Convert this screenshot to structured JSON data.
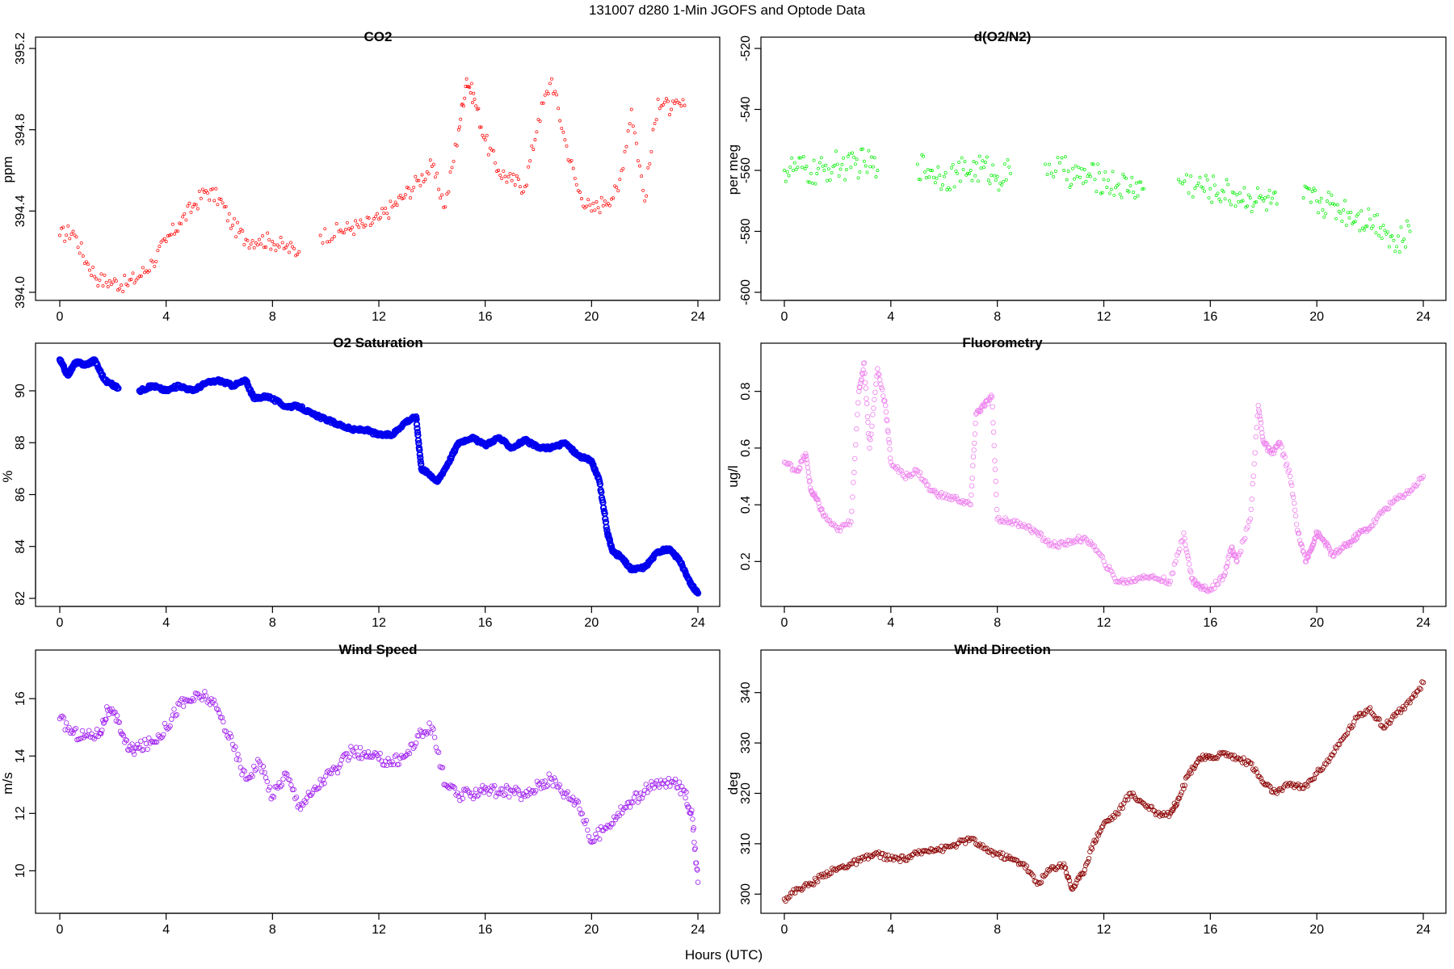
{
  "figure": {
    "title": "131007   d280   1-Min  JGOFS and Optode Data",
    "xlabel": "Hours (UTC)"
  },
  "chart_data": [
    {
      "id": "co2",
      "type": "scatter",
      "title": "CO2",
      "ylabel": "ppm",
      "color": "#ff0000",
      "marker": "small-open-circle",
      "xlim": [
        0,
        24
      ],
      "ylim": [
        394.0,
        395.2
      ],
      "xticks": [
        "0",
        "4",
        "8",
        "12",
        "16",
        "20",
        "24"
      ],
      "yticks": [
        "394.0",
        "394.4",
        "394.8",
        "395.2"
      ],
      "series": [
        {
          "name": "CO2",
          "x": [
            0,
            0.5,
            1,
            1.5,
            2,
            2.5,
            3,
            3.5,
            4,
            4.5,
            5,
            5.5,
            6,
            6.5,
            7,
            7.5,
            8,
            8.5,
            9,
            9.8,
            10.5,
            11,
            11.5,
            12,
            12.5,
            13,
            13.5,
            14,
            14.5,
            15,
            15.3,
            15.6,
            16,
            16.5,
            17,
            17.5,
            18,
            18.5,
            19,
            19.5,
            20,
            20.5,
            21,
            21.5,
            22,
            22.5,
            23,
            23.5
          ],
          "y": [
            394.28,
            394.3,
            394.15,
            394.06,
            394.05,
            394.04,
            394.08,
            394.15,
            394.25,
            394.34,
            394.42,
            394.5,
            394.46,
            394.33,
            394.26,
            394.26,
            394.25,
            394.22,
            394.2,
            394.28,
            394.3,
            394.32,
            394.33,
            394.36,
            394.42,
            394.48,
            394.55,
            394.62,
            394.42,
            394.8,
            395.05,
            394.95,
            394.75,
            394.6,
            394.55,
            394.52,
            394.85,
            395.05,
            394.75,
            394.5,
            394.4,
            394.45,
            394.5,
            394.9,
            394.45,
            394.95,
            394.9,
            394.92
          ]
        }
      ]
    },
    {
      "id": "o2n2",
      "type": "scatter",
      "title": "d(O2/N2)",
      "ylabel": "per meg",
      "color": "#00ee00",
      "marker": "small-open-circle",
      "xlim": [
        0,
        24
      ],
      "ylim": [
        -600,
        -520
      ],
      "xticks": [
        "0",
        "4",
        "8",
        "12",
        "16",
        "20",
        "24"
      ],
      "yticks": [
        "-600",
        "-580",
        "-560",
        "-540",
        "-520"
      ],
      "series": [
        {
          "name": "d(O2/N2)",
          "x": [
            0,
            0.5,
            1,
            1.5,
            2,
            2.5,
            3,
            3.5,
            5,
            5.5,
            6,
            6.5,
            7,
            7.5,
            8,
            8.5,
            9.8,
            10.5,
            11,
            11.5,
            12,
            12.5,
            13,
            13.5,
            14.8,
            15.5,
            16,
            16.5,
            17,
            17.5,
            18,
            18.5,
            19.5,
            20,
            20.5,
            21,
            21.5,
            22,
            22.5,
            23,
            23.5
          ],
          "y": [
            -560,
            -559,
            -561,
            -560,
            -558,
            -559,
            -557,
            -560,
            -558,
            -560,
            -562,
            -561,
            -560,
            -559,
            -562,
            -561,
            -558,
            -560,
            -562,
            -562,
            -563,
            -565,
            -565,
            -566,
            -563,
            -565,
            -566,
            -567,
            -568,
            -569,
            -570,
            -571,
            -569,
            -570,
            -571,
            -573,
            -575,
            -576,
            -578,
            -585,
            -580
          ]
        }
      ]
    },
    {
      "id": "o2sat",
      "type": "scatter",
      "title": "O2 Saturation",
      "ylabel": "%",
      "color": "#0000ee",
      "marker": "thick-open-circle",
      "xlim": [
        0,
        24
      ],
      "ylim": [
        82,
        91.4
      ],
      "xticks": [
        "0",
        "4",
        "8",
        "12",
        "16",
        "20",
        "24"
      ],
      "yticks": [
        "82",
        "84",
        "86",
        "88",
        "90"
      ],
      "series": [
        {
          "name": "O2 Saturation",
          "x": [
            0,
            0.3,
            0.6,
            1,
            1.3,
            1.7,
            2.2,
            3,
            3.5,
            4,
            4.5,
            5,
            5.5,
            6,
            6.5,
            7,
            7.3,
            7.8,
            8.5,
            9,
            9.5,
            10,
            10.5,
            11,
            11.5,
            12,
            12.5,
            13,
            13.4,
            13.6,
            13.9,
            14.2,
            14.6,
            15,
            15.5,
            16,
            16.5,
            17,
            17.5,
            18,
            18.5,
            19,
            19.5,
            20,
            20.3,
            20.6,
            20.8,
            21.1,
            21.5,
            22,
            22.5,
            22.9,
            23.3,
            23.7,
            24
          ],
          "y": [
            91.2,
            90.6,
            91.1,
            91.0,
            91.2,
            90.4,
            90.1,
            90.0,
            90.2,
            90.0,
            90.2,
            90.0,
            90.3,
            90.4,
            90.2,
            90.4,
            89.7,
            89.8,
            89.4,
            89.4,
            89.1,
            88.9,
            88.7,
            88.5,
            88.5,
            88.3,
            88.3,
            88.8,
            89.0,
            87.0,
            86.8,
            86.5,
            87.2,
            88.0,
            88.2,
            87.9,
            88.2,
            87.8,
            88.1,
            87.8,
            87.8,
            88.0,
            87.5,
            87.3,
            86.5,
            84.5,
            83.8,
            83.6,
            83.1,
            83.2,
            83.8,
            83.9,
            83.5,
            82.6,
            82.2
          ]
        }
      ]
    },
    {
      "id": "fluor",
      "type": "scatter",
      "title": "Fluorometry",
      "ylabel": "ug/l",
      "color": "#ee82ee",
      "marker": "open-circle",
      "xlim": [
        0,
        24
      ],
      "ylim": [
        0.07,
        0.93
      ],
      "xticks": [
        "0",
        "4",
        "8",
        "12",
        "16",
        "20",
        "24"
      ],
      "yticks": [
        "0.2",
        "0.4",
        "0.6",
        "0.8"
      ],
      "series": [
        {
          "name": "Fluorometry",
          "x": [
            0,
            0.5,
            0.8,
            1,
            1.2,
            1.5,
            2,
            2.5,
            2.8,
            3,
            3.2,
            3.5,
            3.8,
            4,
            4.5,
            5,
            5.5,
            6,
            6.5,
            7,
            7.2,
            7.5,
            7.8,
            8,
            8.5,
            9,
            9.5,
            10,
            10.5,
            11,
            11.5,
            12,
            12.5,
            13,
            13.5,
            14,
            14.5,
            15,
            15.3,
            15.6,
            16,
            16.5,
            16.8,
            17,
            17.5,
            17.8,
            18,
            18.3,
            18.6,
            19,
            19.3,
            19.6,
            19.8,
            20,
            20.3,
            20.6,
            21,
            21.3,
            21.6,
            22,
            22.5,
            23,
            23.5,
            24
          ],
          "y": [
            0.55,
            0.52,
            0.58,
            0.45,
            0.42,
            0.36,
            0.31,
            0.34,
            0.8,
            0.9,
            0.6,
            0.88,
            0.75,
            0.55,
            0.5,
            0.52,
            0.45,
            0.43,
            0.42,
            0.4,
            0.72,
            0.75,
            0.78,
            0.35,
            0.34,
            0.33,
            0.3,
            0.26,
            0.26,
            0.28,
            0.27,
            0.2,
            0.13,
            0.13,
            0.15,
            0.14,
            0.13,
            0.3,
            0.14,
            0.11,
            0.1,
            0.15,
            0.25,
            0.2,
            0.35,
            0.75,
            0.62,
            0.58,
            0.62,
            0.5,
            0.3,
            0.2,
            0.25,
            0.3,
            0.27,
            0.22,
            0.25,
            0.27,
            0.3,
            0.32,
            0.38,
            0.42,
            0.45,
            0.5
          ]
        }
      ]
    },
    {
      "id": "wspd",
      "type": "scatter",
      "title": "Wind Speed",
      "ylabel": "m/s",
      "color": "#a020f0",
      "marker": "open-circle",
      "xlim": [
        0,
        24
      ],
      "ylim": [
        8.8,
        17.3
      ],
      "xticks": [
        "0",
        "4",
        "8",
        "12",
        "16",
        "20",
        "24"
      ],
      "yticks": [
        "10",
        "12",
        "14",
        "16"
      ],
      "series": [
        {
          "name": "Wind Speed",
          "x": [
            0,
            0.5,
            1,
            1.5,
            1.8,
            2.2,
            2.6,
            3,
            3.5,
            4,
            4.5,
            5,
            5.5,
            6,
            6.5,
            7,
            7.5,
            8,
            8.5,
            9,
            9.5,
            10,
            10.5,
            11,
            11.5,
            12,
            12.5,
            13,
            13.5,
            14,
            14.5,
            15,
            15.5,
            16,
            16.5,
            17,
            17.5,
            18,
            18.5,
            19,
            19.5,
            20,
            20.5,
            21,
            21.5,
            22,
            22.5,
            23,
            23.5,
            23.8,
            24
          ],
          "y": [
            15.3,
            14.8,
            14.7,
            14.8,
            15.6,
            15.2,
            14.2,
            14.3,
            14.5,
            15.0,
            15.8,
            16.0,
            16.1,
            15.5,
            14.4,
            13.2,
            13.8,
            12.6,
            13.4,
            12.3,
            12.7,
            13.3,
            13.6,
            14.2,
            14.0,
            13.9,
            13.8,
            14.0,
            14.7,
            15.0,
            13.0,
            12.6,
            12.7,
            12.9,
            12.7,
            12.8,
            12.6,
            13.0,
            13.2,
            12.7,
            12.4,
            11.0,
            11.5,
            12.0,
            12.4,
            12.8,
            13.0,
            13.1,
            12.8,
            11.8,
            9.6
          ]
        }
      ]
    },
    {
      "id": "wdir",
      "type": "scatter",
      "title": "Wind Direction",
      "ylabel": "deg",
      "color": "#8b0000",
      "marker": "open-circle",
      "xlim": [
        0,
        24
      ],
      "ylim": [
        297.8,
        346.2
      ],
      "xticks": [
        "0",
        "4",
        "8",
        "12",
        "16",
        "20",
        "24"
      ],
      "yticks": [
        "300",
        "310",
        "320",
        "330",
        "340"
      ],
      "series": [
        {
          "name": "Wind Direction",
          "x": [
            0,
            0.5,
            1,
            1.5,
            2,
            2.5,
            3,
            3.5,
            4,
            4.5,
            5,
            5.5,
            6,
            6.5,
            7,
            7.5,
            8,
            8.5,
            9,
            9.5,
            10,
            10.5,
            10.8,
            11.2,
            11.6,
            12,
            12.5,
            13,
            13.5,
            14,
            14.5,
            14.8,
            15.2,
            15.6,
            16,
            16.5,
            17,
            17.5,
            18,
            18.5,
            19,
            19.5,
            20,
            20.5,
            21,
            21.5,
            22,
            22.5,
            23,
            23.5,
            24
          ],
          "y": [
            299,
            301,
            302,
            304,
            305,
            306,
            307,
            308,
            307,
            307,
            308,
            309,
            309,
            310,
            311,
            309,
            308,
            307,
            306,
            302,
            305,
            306,
            301,
            304,
            310,
            314,
            316,
            320,
            318,
            316,
            316,
            319,
            324,
            327,
            327,
            328,
            327,
            326,
            322,
            320,
            322,
            321,
            324,
            327,
            331,
            335,
            337,
            333,
            336,
            338,
            342
          ]
        }
      ]
    }
  ]
}
